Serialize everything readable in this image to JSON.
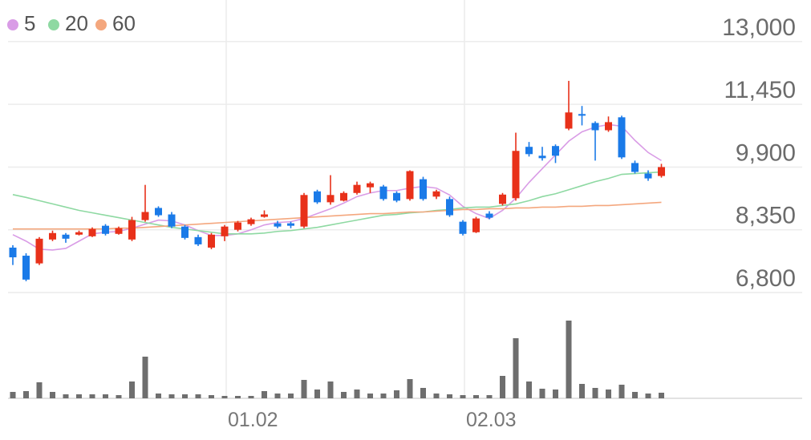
{
  "chart_data": {
    "type": "candlestick",
    "categories": [
      null,
      null,
      null,
      null,
      null,
      null,
      null,
      null,
      null,
      null,
      null,
      null,
      null,
      null,
      null,
      null,
      "01.02",
      null,
      null,
      null,
      null,
      null,
      null,
      null,
      null,
      null,
      null,
      null,
      null,
      null,
      null,
      null,
      null,
      null,
      "02.03",
      null,
      null,
      null,
      null,
      null,
      null,
      null,
      null,
      null,
      null,
      null,
      null,
      null,
      null,
      null
    ],
    "open": [
      7910,
      7710,
      7520,
      8110,
      8230,
      8230,
      8190,
      8450,
      8250,
      8110,
      8590,
      8890,
      8730,
      8430,
      8170,
      7910,
      8190,
      8350,
      8490,
      8670,
      8510,
      8510,
      8430,
      9300,
      9030,
      9070,
      9260,
      9400,
      9420,
      9260,
      9110,
      9600,
      9170,
      9110,
      8550,
      8290,
      8750,
      8990,
      9130,
      10400,
      10180,
      10420,
      10850,
      11210,
      10990,
      10810,
      11130,
      10000,
      9740,
      9680
    ],
    "high": [
      7970,
      7770,
      8170,
      8330,
      8270,
      8330,
      8410,
      8490,
      8430,
      8670,
      9460,
      8930,
      8790,
      8470,
      8230,
      8270,
      8470,
      8570,
      8650,
      8830,
      8570,
      8550,
      9260,
      9340,
      9700,
      9300,
      9540,
      9540,
      9460,
      9300,
      9820,
      9660,
      9340,
      9170,
      8590,
      8670,
      8810,
      9260,
      10750,
      10520,
      10400,
      10460,
      12030,
      11410,
      11030,
      11150,
      11170,
      10060,
      9820,
      9980
    ],
    "low": [
      7480,
      7080,
      7480,
      8070,
      8030,
      8210,
      8170,
      8210,
      8230,
      8070,
      8550,
      8670,
      8390,
      8110,
      7950,
      7870,
      8070,
      8310,
      8450,
      8650,
      8390,
      8390,
      8390,
      8990,
      8970,
      9050,
      9220,
      9260,
      9070,
      9030,
      9070,
      9070,
      9110,
      8670,
      8210,
      8270,
      8610,
      8950,
      9070,
      10160,
      10060,
      10000,
      10810,
      10930,
      10060,
      10770,
      10100,
      9740,
      9560,
      9640
    ],
    "close": [
      7670,
      7120,
      8130,
      8270,
      8130,
      8290,
      8370,
      8250,
      8390,
      8590,
      8790,
      8710,
      8430,
      8150,
      7990,
      8230,
      8430,
      8530,
      8610,
      8730,
      8430,
      8450,
      9210,
      9030,
      9210,
      9260,
      9460,
      9500,
      9110,
      9070,
      9800,
      9110,
      9300,
      8710,
      8250,
      8630,
      8650,
      9220,
      10300,
      10220,
      10120,
      10180,
      11250,
      11170,
      10810,
      11010,
      10140,
      9780,
      9620,
      9900
    ],
    "up_color": "#e8311a",
    "down_color": "#1a7ae8",
    "ylim": [
      6800,
      13830
    ],
    "yticks": [
      {
        "value": 13000,
        "label": "13,000"
      },
      {
        "value": 11450,
        "label": "11,450"
      },
      {
        "value": 9900,
        "label": "9,900"
      },
      {
        "value": 8350,
        "label": "8,350"
      },
      {
        "value": 6800,
        "label": "6,800"
      }
    ],
    "grid": true,
    "series": [
      {
        "name": "5",
        "color": "#d99ce6",
        "values": [
          8230,
          8070,
          7870,
          7850,
          7890,
          8070,
          8250,
          8290,
          8310,
          8390,
          8490,
          8590,
          8570,
          8470,
          8330,
          8210,
          8210,
          8250,
          8350,
          8470,
          8530,
          8550,
          8630,
          8750,
          8870,
          9010,
          9170,
          9260,
          9320,
          9320,
          9380,
          9420,
          9380,
          9210,
          8930,
          8750,
          8630,
          8830,
          9130,
          9520,
          9860,
          10200,
          10540,
          10770,
          10890,
          10950,
          10910,
          10560,
          10260,
          10060
        ]
      },
      {
        "name": "20",
        "color": "#8ed9a2",
        "values": [
          9220,
          9150,
          9070,
          8990,
          8910,
          8830,
          8770,
          8710,
          8650,
          8590,
          8530,
          8470,
          8410,
          8370,
          8330,
          8290,
          8250,
          8250,
          8250,
          8270,
          8310,
          8330,
          8370,
          8410,
          8470,
          8530,
          8590,
          8650,
          8710,
          8730,
          8770,
          8790,
          8830,
          8850,
          8890,
          8910,
          8910,
          8950,
          8990,
          9070,
          9170,
          9240,
          9340,
          9440,
          9540,
          9620,
          9720,
          9740,
          9760,
          9780
        ]
      },
      {
        "name": "60",
        "color": "#f4a77e",
        "values": [
          8370,
          8370,
          8370,
          8370,
          8370,
          8370,
          8370,
          8370,
          8390,
          8390,
          8410,
          8430,
          8450,
          8470,
          8490,
          8510,
          8530,
          8550,
          8570,
          8590,
          8610,
          8630,
          8650,
          8670,
          8690,
          8710,
          8730,
          8750,
          8750,
          8770,
          8790,
          8790,
          8810,
          8830,
          8850,
          8850,
          8870,
          8870,
          8890,
          8890,
          8910,
          8910,
          8930,
          8930,
          8950,
          8950,
          8970,
          8990,
          9010,
          9030
        ]
      }
    ],
    "volume": {
      "color": "#6e6e6e",
      "ylim": [
        0,
        130
      ],
      "values": [
        8,
        9,
        20,
        8,
        5,
        5,
        5,
        5,
        4,
        21,
        52,
        6,
        5,
        5,
        5,
        4,
        3,
        3,
        3,
        9,
        6,
        6,
        23,
        11,
        21,
        8,
        11,
        6,
        6,
        10,
        24,
        13,
        6,
        5,
        4,
        4,
        4,
        28,
        75,
        21,
        12,
        11,
        97,
        18,
        13,
        11,
        17,
        8,
        6,
        7
      ]
    }
  }
}
